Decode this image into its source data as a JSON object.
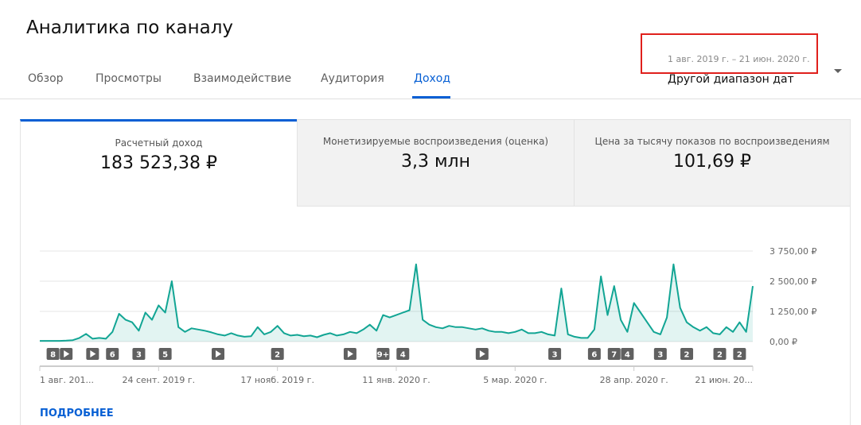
{
  "header": {
    "title": "Аналитика по каналу",
    "date_range": "1 авг. 2019 г. – 21 июн. 2020 г.",
    "range_button": "Другой диапазон дат"
  },
  "tabs": {
    "items": [
      "Обзор",
      "Просмотры",
      "Взаимодействие",
      "Аудитория",
      "Доход"
    ],
    "active": 4
  },
  "cards": {
    "items": [
      {
        "label": "Расчетный доход",
        "value": "183 523,38 ₽"
      },
      {
        "label": "Монетизируемые воспроизведения (оценка)",
        "value": "3,3 млн"
      },
      {
        "label": "Цена за тысячу показов по воспроизведениям",
        "value": "101,69 ₽"
      }
    ],
    "selected": 0
  },
  "chart_data": {
    "type": "line",
    "fill": true,
    "color": "#12a594",
    "categories": [
      "1 авг. 201...",
      null,
      null,
      null,
      null,
      null,
      null,
      null,
      null,
      null,
      null,
      null,
      null,
      null,
      null,
      null,
      null,
      null,
      "24 сент. 2019 г.",
      null,
      null,
      null,
      null,
      null,
      null,
      null,
      null,
      null,
      null,
      null,
      null,
      null,
      null,
      null,
      null,
      null,
      "17 нояб. 2019 г.",
      null,
      null,
      null,
      null,
      null,
      null,
      null,
      null,
      null,
      null,
      null,
      null,
      null,
      null,
      null,
      null,
      null,
      "11 янв. 2020 г.",
      null,
      null,
      null,
      null,
      null,
      null,
      null,
      null,
      null,
      null,
      null,
      null,
      null,
      null,
      null,
      null,
      null,
      "5 мар. 2020 г.",
      null,
      null,
      null,
      null,
      null,
      null,
      null,
      null,
      null,
      null,
      null,
      null,
      null,
      null,
      null,
      null,
      null,
      "28 апр. 2020 г.",
      null,
      null,
      null,
      null,
      null,
      null,
      null,
      null,
      null,
      null,
      null,
      null,
      null,
      null,
      null,
      null,
      null,
      "21 июн. 20..."
    ],
    "values": [
      30,
      30,
      30,
      30,
      40,
      60,
      150,
      320,
      120,
      150,
      120,
      400,
      1150,
      900,
      800,
      450,
      1200,
      900,
      1500,
      1200,
      2500,
      600,
      400,
      550,
      500,
      450,
      380,
      300,
      250,
      350,
      250,
      200,
      220,
      600,
      300,
      400,
      650,
      350,
      250,
      280,
      220,
      250,
      180,
      280,
      350,
      250,
      300,
      400,
      350,
      500,
      700,
      450,
      1100,
      1000,
      1100,
      1200,
      1300,
      3200,
      900,
      700,
      600,
      550,
      650,
      600,
      600,
      550,
      500,
      550,
      450,
      400,
      400,
      350,
      400,
      500,
      350,
      350,
      400,
      300,
      250,
      2200,
      300,
      200,
      150,
      150,
      500,
      2700,
      1100,
      2300,
      900,
      400,
      1600,
      1200,
      800,
      400,
      300,
      1000,
      3200,
      1400,
      800,
      600,
      450,
      600,
      350,
      300,
      600,
      400,
      800,
      400,
      2300
    ],
    "ylim": [
      0,
      3750
    ],
    "yticks": [
      {
        "value": 0,
        "label": "0,00 ₽"
      },
      {
        "value": 1250,
        "label": "1 250,00 ₽"
      },
      {
        "value": 2500,
        "label": "2 500,00 ₽"
      },
      {
        "value": 3750,
        "label": "3 750,00 ₽"
      }
    ],
    "grid": true,
    "markers": [
      {
        "index": 2,
        "label": "8"
      },
      {
        "index": 4,
        "kind": "play"
      },
      {
        "index": 8,
        "kind": "play"
      },
      {
        "index": 11,
        "label": "6"
      },
      {
        "index": 15,
        "label": "3"
      },
      {
        "index": 19,
        "label": "5"
      },
      {
        "index": 27,
        "kind": "play"
      },
      {
        "index": 36,
        "label": "2"
      },
      {
        "index": 47,
        "kind": "play"
      },
      {
        "index": 52,
        "label": "9+"
      },
      {
        "index": 55,
        "label": "4"
      },
      {
        "index": 67,
        "kind": "play"
      },
      {
        "index": 78,
        "label": "3"
      },
      {
        "index": 84,
        "label": "6"
      },
      {
        "index": 87,
        "label": "7"
      },
      {
        "index": 89,
        "label": "4"
      },
      {
        "index": 94,
        "label": "3"
      },
      {
        "index": 98,
        "label": "2"
      },
      {
        "index": 103,
        "label": "2"
      },
      {
        "index": 106,
        "label": "2"
      }
    ]
  },
  "footer": {
    "more": "ПОДРОБНЕЕ"
  }
}
